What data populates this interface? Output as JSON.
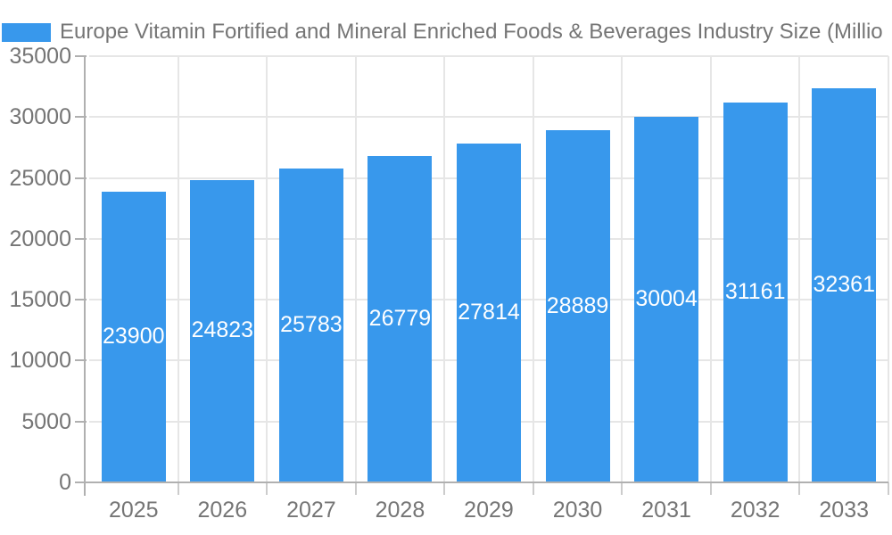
{
  "legend": {
    "series_label": "Europe Vitamin Fortified and Mineral Enriched Foods & Beverages Industry Size (Millio",
    "swatch_color": "#3898ec"
  },
  "chart_data": {
    "type": "bar",
    "title": "Europe Vitamin Fortified and Mineral Enriched Foods & Beverages Industry Size (Millio",
    "title_truncated": true,
    "categories": [
      "2025",
      "2026",
      "2027",
      "2028",
      "2029",
      "2030",
      "2031",
      "2032",
      "2033"
    ],
    "values": [
      23900,
      24823,
      25783,
      26779,
      27814,
      28889,
      30004,
      31161,
      32361
    ],
    "series": [
      {
        "name": "Europe Vitamin Fortified and Mineral Enriched Foods & Beverages Industry Size (Millio",
        "values": [
          23900,
          24823,
          25783,
          26779,
          27814,
          28889,
          30004,
          31161,
          32361
        ]
      }
    ],
    "xlabel": "",
    "ylabel": "",
    "ylim": [
      0,
      35000
    ],
    "ytick_step": 5000,
    "yticks": [
      0,
      5000,
      10000,
      15000,
      20000,
      25000,
      30000,
      35000
    ],
    "grid": true,
    "legend_position": "top-left",
    "bar_labels_inside": true,
    "colors": {
      "bar": "#3898ec",
      "bar_label": "#ffffff",
      "axis_line": "#b0b0b0",
      "subtick": "#cccccc",
      "gridline": "#e6e6e6",
      "text": "#757575"
    }
  }
}
